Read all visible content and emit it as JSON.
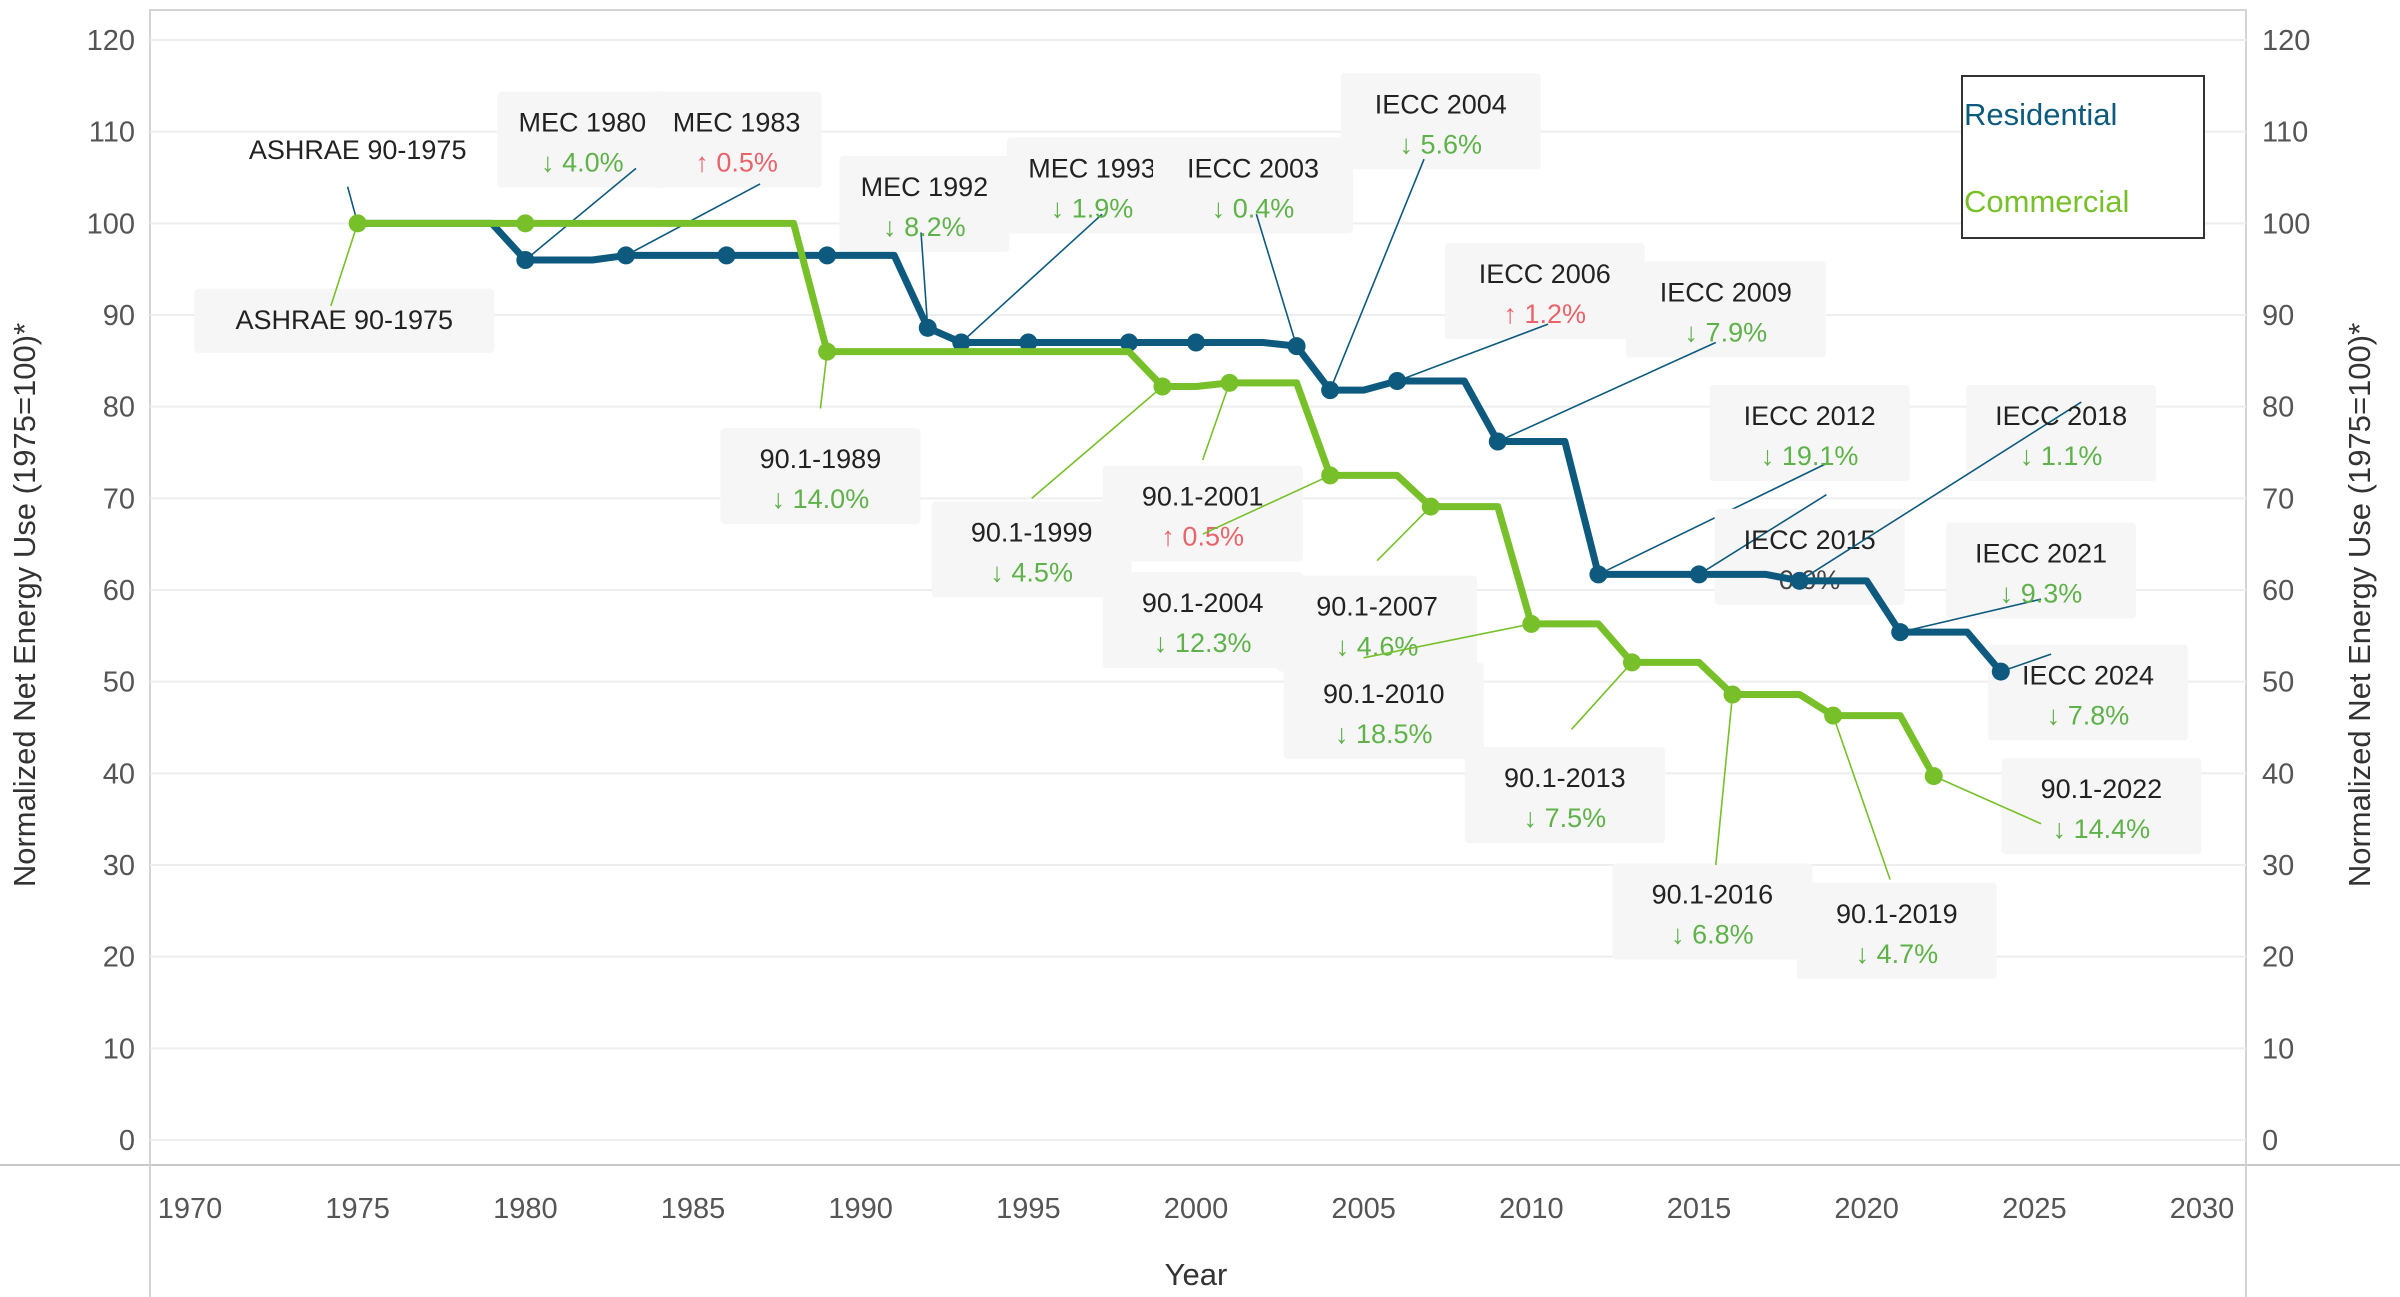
{
  "chart_data": {
    "type": "line",
    "title": "",
    "xlabel": "Year",
    "ylabel_left": "Normalized Net Energy Use (1975=100)*",
    "ylabel_right": "Normalized Net Energy Use (1975=100)*",
    "xlim": [
      1970,
      2030
    ],
    "ylim": [
      0,
      120
    ],
    "x_ticks": [
      1970,
      1975,
      1980,
      1985,
      1990,
      1995,
      2000,
      2005,
      2010,
      2015,
      2020,
      2025,
      2030
    ],
    "y_ticks": [
      0,
      10,
      20,
      30,
      40,
      50,
      60,
      70,
      80,
      90,
      100,
      110,
      120
    ],
    "grid": true,
    "legend_position": "top-right",
    "colors": {
      "residential": "#0e5a7e",
      "commercial": "#77c02a",
      "increase": "#e8636a",
      "decrease": "#5fb24a",
      "neutral": "#444444"
    },
    "series": [
      {
        "name": "Residential",
        "color": "#0e5a7e",
        "points": [
          {
            "x": 1975,
            "y": 100.0,
            "label": "ASHRAE 90-1975",
            "change": "",
            "dir": "none"
          },
          {
            "x": 1980,
            "y": 96.0,
            "label": "MEC 1980",
            "change": "4.0%",
            "dir": "down"
          },
          {
            "x": 1983,
            "y": 96.5,
            "label": "MEC 1983",
            "change": "0.5%",
            "dir": "up"
          },
          {
            "x": 1986,
            "y": 96.5,
            "label": "",
            "change": "",
            "dir": "none"
          },
          {
            "x": 1989,
            "y": 96.5,
            "label": "",
            "change": "",
            "dir": "none"
          },
          {
            "x": 1992,
            "y": 88.6,
            "label": "MEC 1992",
            "change": "8.2%",
            "dir": "down"
          },
          {
            "x": 1993,
            "y": 87.0,
            "label": "MEC 1993",
            "change": "1.9%",
            "dir": "down"
          },
          {
            "x": 1995,
            "y": 87.0,
            "label": "",
            "change": "",
            "dir": "none"
          },
          {
            "x": 1998,
            "y": 87.0,
            "label": "",
            "change": "",
            "dir": "none"
          },
          {
            "x": 2000,
            "y": 87.0,
            "label": "",
            "change": "",
            "dir": "none"
          },
          {
            "x": 2003,
            "y": 86.6,
            "label": "IECC 2003",
            "change": "0.4%",
            "dir": "down"
          },
          {
            "x": 2004,
            "y": 81.8,
            "label": "IECC 2004",
            "change": "5.6%",
            "dir": "down"
          },
          {
            "x": 2006,
            "y": 82.8,
            "label": "IECC 2006",
            "change": "1.2%",
            "dir": "up"
          },
          {
            "x": 2009,
            "y": 76.2,
            "label": "IECC 2009",
            "change": "7.9%",
            "dir": "down"
          },
          {
            "x": 2012,
            "y": 61.7,
            "label": "IECC 2012",
            "change": "19.1%",
            "dir": "down"
          },
          {
            "x": 2015,
            "y": 61.7,
            "label": "IECC 2015",
            "change": "0.0%",
            "dir": "none"
          },
          {
            "x": 2018,
            "y": 61.0,
            "label": "IECC 2018",
            "change": "1.1%",
            "dir": "down"
          },
          {
            "x": 2021,
            "y": 55.4,
            "label": "IECC 2021",
            "change": "9.3%",
            "dir": "down"
          },
          {
            "x": 2024,
            "y": 51.1,
            "label": "IECC 2024",
            "change": "7.8%",
            "dir": "down"
          }
        ]
      },
      {
        "name": "Commercial",
        "color": "#77c02a",
        "points": [
          {
            "x": 1975,
            "y": 100.0,
            "label": "ASHRAE 90-1975",
            "change": "",
            "dir": "none"
          },
          {
            "x": 1980,
            "y": 100.0,
            "label": "",
            "change": "",
            "dir": "none"
          },
          {
            "x": 1989,
            "y": 86.0,
            "label": "90.1-1989",
            "change": "14.0%",
            "dir": "down"
          },
          {
            "x": 1999,
            "y": 82.2,
            "label": "90.1-1999",
            "change": "4.5%",
            "dir": "down"
          },
          {
            "x": 2001,
            "y": 82.6,
            "label": "90.1-2001",
            "change": "0.5%",
            "dir": "up"
          },
          {
            "x": 2004,
            "y": 72.5,
            "label": "90.1-2004",
            "change": "12.3%",
            "dir": "down"
          },
          {
            "x": 2007,
            "y": 69.1,
            "label": "90.1-2007",
            "change": "4.6%",
            "dir": "down"
          },
          {
            "x": 2010,
            "y": 56.3,
            "label": "90.1-2010",
            "change": "18.5%",
            "dir": "down"
          },
          {
            "x": 2013,
            "y": 52.1,
            "label": "90.1-2013",
            "change": "7.5%",
            "dir": "down"
          },
          {
            "x": 2016,
            "y": 48.6,
            "label": "90.1-2016",
            "change": "6.8%",
            "dir": "down"
          },
          {
            "x": 2019,
            "y": 46.3,
            "label": "90.1-2019",
            "change": "4.7%",
            "dir": "down"
          },
          {
            "x": 2022,
            "y": 39.7,
            "label": "90.1-2022",
            "change": "14.4%",
            "dir": "down"
          }
        ]
      }
    ],
    "legend": [
      "Residential",
      "Commercial"
    ]
  }
}
